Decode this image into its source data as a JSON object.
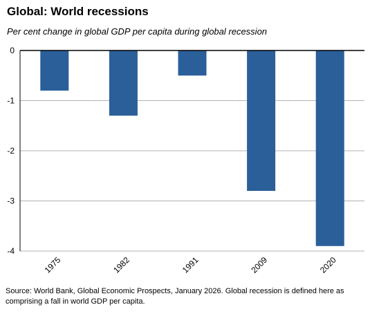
{
  "chart_data": {
    "type": "bar",
    "title": "Global: World recessions",
    "subtitle": "Per cent change in global GDP per capita  during global recession",
    "xlabel": "",
    "ylabel": "",
    "categories": [
      "1975",
      "1982",
      "1991",
      "2009",
      "2020"
    ],
    "values": [
      -0.8,
      -1.3,
      -0.5,
      -2.8,
      -3.9
    ],
    "ylim": [
      -4,
      0
    ],
    "yticks": [
      "0",
      "-1",
      "-2",
      "-3",
      "-4"
    ],
    "grid": true,
    "bar_color": "#2a5f99",
    "source": "Source: World Bank, Global Economic Prospects, January 2026. Global recession is defined here as comprising a fall in world GDP per capita."
  }
}
